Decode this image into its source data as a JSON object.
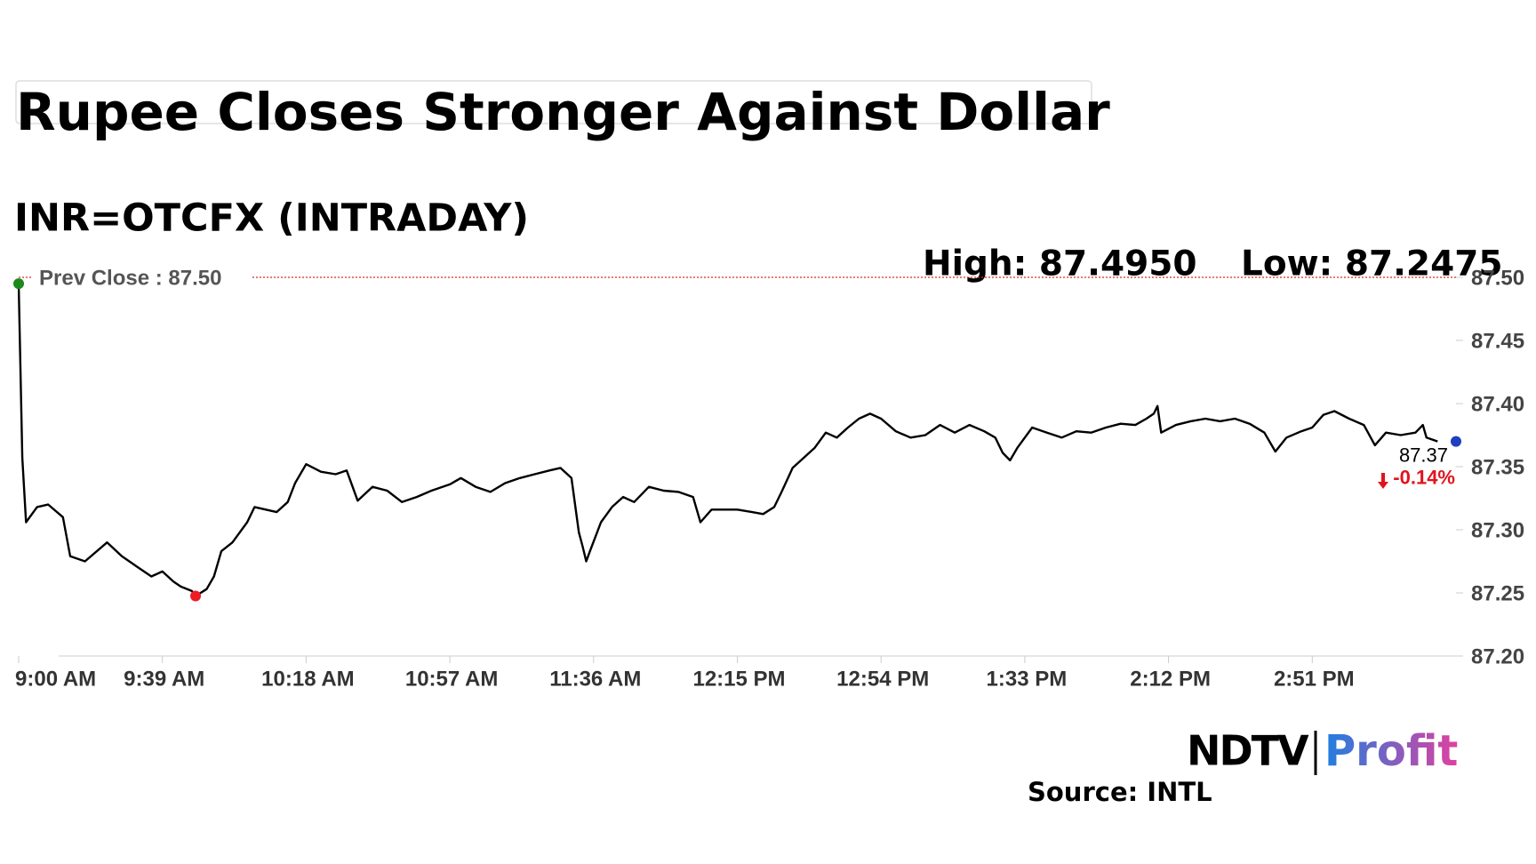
{
  "chart_data": {
    "type": "line",
    "title": "Rupee Closes Stronger Against Dollar",
    "subtitle": "INR=OTCFX (INTRADAY)",
    "high_label": "High: 87.4950",
    "low_label": "Low: 87.2475",
    "source": "Source: INTL",
    "logo": {
      "left": "NDTV",
      "right": "Profit"
    },
    "color": "#000000",
    "reference": {
      "label": "Prev Close : 87.50",
      "value": 87.5,
      "color": "#d62728"
    },
    "xlim": [
      "9:00 AM",
      "3:30 PM"
    ],
    "xticks": [
      "9:00 AM",
      "9:39 AM",
      "10:18 AM",
      "10:57 AM",
      "11:36 AM",
      "12:15 PM",
      "12:54 PM",
      "1:33 PM",
      "2:12 PM",
      "2:51 PM"
    ],
    "ylim": [
      87.2,
      87.5
    ],
    "yticks": [
      {
        "value": 87.2,
        "label": "87.20"
      },
      87.25,
      {
        "value": 87.3,
        "label": "87.30"
      },
      87.35,
      {
        "value": 87.4,
        "label": "87.40"
      },
      87.45,
      {
        "value": 87.5,
        "label": "87.50"
      }
    ],
    "x": [
      "9:00 AM",
      "9:01 AM",
      "9:02 AM",
      "9:05 AM",
      "9:08 AM",
      "9:12 AM",
      "9:14 AM",
      "9:18 AM",
      "9:24 AM",
      "9:28 AM",
      "9:32 AM",
      "9:36 AM",
      "9:39 AM",
      "9:42 AM",
      "9:44 AM",
      "9:47 AM",
      "9:48 AM",
      "9:51 AM",
      "9:53 AM",
      "9:55 AM",
      "9:58 AM",
      "10:02 AM",
      "10:04 AM",
      "10:10 AM",
      "10:13 AM",
      "10:15 AM",
      "10:18 AM",
      "10:22 AM",
      "10:26 AM",
      "10:29 AM",
      "10:32 AM",
      "10:36 AM",
      "10:40 AM",
      "10:44 AM",
      "10:48 AM",
      "10:52 AM",
      "10:57 AM",
      "11:00 AM",
      "11:04 AM",
      "11:08 AM",
      "11:12 AM",
      "11:16 AM",
      "11:20 AM",
      "11:24 AM",
      "11:27 AM",
      "11:30 AM",
      "11:32 AM",
      "11:33 AM",
      "11:34 AM",
      "11:35 AM",
      "11:38 AM",
      "11:41 AM",
      "11:44 AM",
      "11:47 AM",
      "11:51 AM",
      "11:55 AM",
      "11:59 AM",
      "12:03 PM",
      "12:05 PM",
      "12:08 PM",
      "12:15 PM",
      "12:19 PM",
      "12:22 PM",
      "12:25 PM",
      "12:27 PM",
      "12:30 PM",
      "12:33 PM",
      "12:36 PM",
      "12:39 PM",
      "12:42 PM",
      "12:45 PM",
      "12:48 PM",
      "12:51 PM",
      "12:54 PM",
      "12:58 PM",
      "1:02 PM",
      "1:06 PM",
      "1:10 PM",
      "1:14 PM",
      "1:18 PM",
      "1:22 PM",
      "1:25 PM",
      "1:27 PM",
      "1:29 PM",
      "1:31 PM",
      "1:35 PM",
      "1:39 PM",
      "1:43 PM",
      "1:47 PM",
      "1:51 PM",
      "1:55 PM",
      "1:59 PM",
      "2:03 PM",
      "2:06 PM",
      "2:08 PM",
      "2:09 PM",
      "2:10 PM",
      "2:14 PM",
      "2:18 PM",
      "2:22 PM",
      "2:26 PM",
      "2:30 PM",
      "2:34 PM",
      "2:38 PM",
      "2:41 PM",
      "2:44 PM",
      "2:48 PM",
      "2:51 PM",
      "2:54 PM",
      "2:57 PM",
      "3:01 PM",
      "3:05 PM",
      "3:08 PM",
      "3:11 PM",
      "3:15 PM",
      "3:19 PM",
      "3:21 PM",
      "3:22 PM",
      "3:25 PM"
    ],
    "values": [
      87.495,
      87.357,
      87.306,
      87.318,
      87.32,
      87.31,
      87.279,
      87.275,
      87.29,
      87.279,
      87.271,
      87.263,
      87.267,
      87.259,
      87.255,
      87.2515,
      87.2475,
      87.253,
      87.263,
      87.283,
      87.29,
      87.306,
      87.318,
      87.314,
      87.322,
      87.337,
      87.352,
      87.346,
      87.344,
      87.347,
      87.323,
      87.334,
      87.331,
      87.322,
      87.326,
      87.331,
      87.336,
      87.341,
      87.334,
      87.33,
      87.337,
      87.341,
      87.344,
      87.347,
      87.349,
      87.341,
      87.298,
      87.287,
      87.275,
      87.283,
      87.306,
      87.318,
      87.326,
      87.322,
      87.334,
      87.331,
      87.33,
      87.326,
      87.306,
      87.316,
      87.316,
      87.314,
      87.3125,
      87.318,
      87.33,
      87.349,
      87.357,
      87.365,
      87.377,
      87.373,
      87.381,
      87.388,
      87.392,
      87.388,
      87.378,
      87.373,
      87.375,
      87.383,
      87.377,
      87.383,
      87.378,
      87.373,
      87.361,
      87.355,
      87.365,
      87.381,
      87.377,
      87.373,
      87.378,
      87.377,
      87.381,
      87.384,
      87.383,
      87.388,
      87.392,
      87.398,
      87.377,
      87.383,
      87.386,
      87.388,
      87.386,
      87.388,
      87.384,
      87.377,
      87.362,
      87.373,
      87.378,
      87.381,
      87.391,
      87.394,
      87.388,
      87.383,
      87.367,
      87.377,
      87.375,
      87.377,
      87.383,
      87.373,
      87.37
    ],
    "markers": [
      {
        "x": "9:00 AM",
        "value": 87.495,
        "color": "#1a8a1a"
      },
      {
        "x": "9:48 AM",
        "value": 87.2475,
        "color": "#ee1c25"
      },
      {
        "x": "3:30 PM",
        "value": 87.37,
        "color": "#1f3fbf",
        "label": "87.37"
      }
    ],
    "change": {
      "value": -0.14,
      "label": "-0.14%",
      "color": "#e0141e"
    }
  }
}
